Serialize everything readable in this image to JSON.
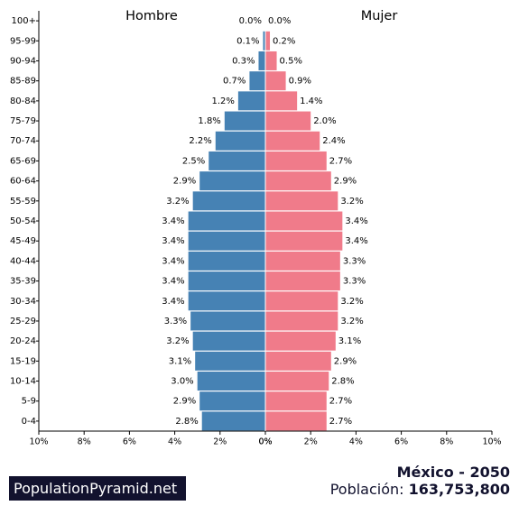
{
  "chart_data": {
    "type": "bar",
    "orientation": "horizontal-pyramid",
    "left_label": "Hombre",
    "right_label": "Mujer",
    "categories": [
      "100+",
      "95-99",
      "90-94",
      "85-89",
      "80-84",
      "75-79",
      "70-74",
      "65-69",
      "60-64",
      "55-59",
      "50-54",
      "45-49",
      "40-44",
      "35-39",
      "30-34",
      "25-29",
      "20-24",
      "15-19",
      "10-14",
      "5-9",
      "0-4"
    ],
    "series": [
      {
        "name": "Hombre",
        "color": "#4682b4",
        "values": [
          0.0,
          0.1,
          0.3,
          0.7,
          1.2,
          1.8,
          2.2,
          2.5,
          2.9,
          3.2,
          3.4,
          3.4,
          3.4,
          3.4,
          3.4,
          3.3,
          3.2,
          3.1,
          3.0,
          2.9,
          2.8
        ],
        "labels": [
          "0.0%",
          "0.1%",
          "0.3%",
          "0.7%",
          "1.2%",
          "1.8%",
          "2.2%",
          "2.5%",
          "2.9%",
          "3.2%",
          "3.4%",
          "3.4%",
          "3.4%",
          "3.4%",
          "3.4%",
          "3.3%",
          "3.2%",
          "3.1%",
          "3.0%",
          "2.9%",
          "2.8%"
        ]
      },
      {
        "name": "Mujer",
        "color": "#f07b8a",
        "values": [
          0.0,
          0.2,
          0.5,
          0.9,
          1.4,
          2.0,
          2.4,
          2.7,
          2.9,
          3.2,
          3.4,
          3.4,
          3.3,
          3.3,
          3.2,
          3.2,
          3.1,
          2.9,
          2.8,
          2.7,
          2.7
        ],
        "labels": [
          "0.0%",
          "0.2%",
          "0.5%",
          "0.9%",
          "1.4%",
          "2.0%",
          "2.4%",
          "2.7%",
          "2.9%",
          "3.2%",
          "3.4%",
          "3.4%",
          "3.3%",
          "3.3%",
          "3.2%",
          "3.2%",
          "3.1%",
          "2.9%",
          "2.8%",
          "2.7%",
          "2.7%"
        ]
      }
    ],
    "xlim": [
      0,
      10
    ],
    "x_ticks_left": [
      "10%",
      "8%",
      "6%",
      "4%",
      "2%",
      "0%"
    ],
    "x_ticks_right": [
      "0%",
      "2%",
      "4%",
      "6%",
      "8%",
      "10%"
    ],
    "grid": false
  },
  "footer": {
    "brand": "PopulationPyramid.net",
    "country_year": "México - 2050",
    "population_label": "Población:",
    "population_value": "163,753,800"
  }
}
